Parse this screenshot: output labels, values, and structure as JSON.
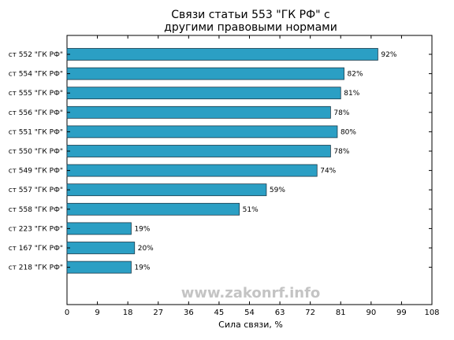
{
  "chart_data": {
    "type": "bar",
    "orientation": "horizontal",
    "title_lines": [
      "Связи статьи 553 \"ГК РФ\" с",
      "другими правовыми нормами"
    ],
    "xlabel": "Сила связи, %",
    "ylabel": "",
    "xlim": [
      0,
      108
    ],
    "xticks": [
      0,
      9,
      18,
      27,
      36,
      45,
      54,
      63,
      72,
      81,
      90,
      99,
      108
    ],
    "categories": [
      "ст 552 \"ГК РФ\"",
      "ст 554 \"ГК РФ\"",
      "ст 555 \"ГК РФ\"",
      "ст 556 \"ГК РФ\"",
      "ст 551 \"ГК РФ\"",
      "ст 550 \"ГК РФ\"",
      "ст 549 \"ГК РФ\"",
      "ст 557 \"ГК РФ\"",
      "ст 558 \"ГК РФ\"",
      "ст 223 \"ГК РФ\"",
      "ст 167 \"ГК РФ\"",
      "ст 218 \"ГК РФ\""
    ],
    "values": [
      92,
      82,
      81,
      78,
      80,
      78,
      74,
      59,
      51,
      19,
      20,
      19
    ],
    "value_labels": [
      "92%",
      "82%",
      "81%",
      "78%",
      "80%",
      "78%",
      "74%",
      "59%",
      "51%",
      "19%",
      "20%",
      "19%"
    ],
    "bar_color": "#2b9fc4",
    "grid": false,
    "watermark": "www.zakonrf.info"
  }
}
